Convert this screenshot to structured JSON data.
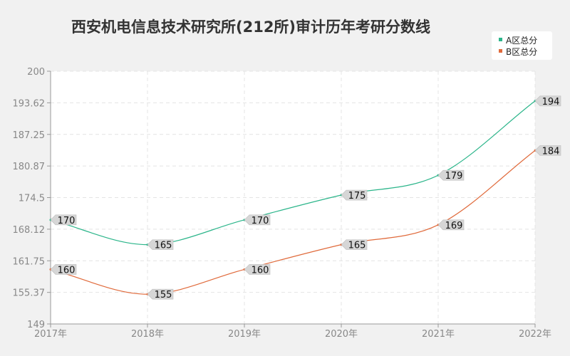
{
  "chart_data": {
    "type": "line",
    "title": "西安机电信息技术研究所(212所)审计历年考研分数线",
    "xlabel": "",
    "ylabel": "",
    "categories": [
      "2017年",
      "2018年",
      "2019年",
      "2020年",
      "2021年",
      "2022年"
    ],
    "y_ticks": [
      "149",
      "155.37",
      "161.75",
      "168.12",
      "174.5",
      "180.87",
      "187.25",
      "193.62",
      "200"
    ],
    "ylim": [
      149,
      200
    ],
    "grid": true,
    "legend_position": "top-right",
    "series": [
      {
        "name": "A区总分",
        "color": "#2bb58a",
        "values": [
          170,
          165,
          170,
          175,
          179,
          194
        ]
      },
      {
        "name": "B区总分",
        "color": "#e06a3b",
        "values": [
          160,
          155,
          160,
          165,
          169,
          184
        ]
      }
    ]
  }
}
